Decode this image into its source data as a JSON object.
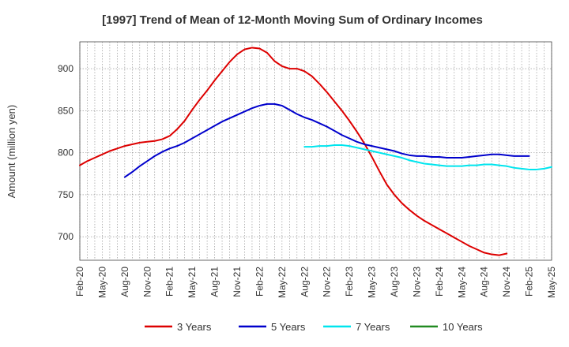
{
  "chart_data": {
    "type": "line",
    "title": "[1997]  Trend of Mean of 12-Month Moving Sum of Ordinary Incomes",
    "xlabel": "",
    "ylabel": "Amount (million yen)",
    "ylim": [
      672,
      932
    ],
    "yticks": [
      700,
      750,
      800,
      850,
      900
    ],
    "x_tick_labels": [
      "Feb-20",
      "May-20",
      "Aug-20",
      "Nov-20",
      "Feb-21",
      "May-21",
      "Aug-21",
      "Nov-21",
      "Feb-22",
      "May-22",
      "Aug-22",
      "Nov-22",
      "Feb-23",
      "May-23",
      "Aug-23",
      "Nov-23",
      "Feb-24",
      "May-24",
      "Aug-24",
      "Nov-24",
      "Feb-25",
      "May-25"
    ],
    "x_month_range": [
      0,
      63
    ],
    "grid": true,
    "legend_position": "bottom",
    "series": [
      {
        "name": "3 Years",
        "color": "#dd0000",
        "start_month": 0,
        "values": [
          785,
          790,
          794,
          798,
          802,
          805,
          808,
          810,
          812,
          813,
          814,
          816,
          820,
          828,
          838,
          851,
          863,
          874,
          886,
          897,
          908,
          917,
          923,
          925,
          924,
          919,
          909,
          903,
          900,
          900,
          897,
          891,
          882,
          872,
          861,
          850,
          838,
          825,
          811,
          795,
          778,
          762,
          750,
          740,
          732,
          725,
          719,
          714,
          709,
          704,
          699,
          694,
          689,
          685,
          681,
          679,
          678,
          680
        ]
      },
      {
        "name": "5 Years",
        "color": "#0000cc",
        "start_month": 6,
        "values": [
          771,
          777,
          784,
          790,
          796,
          801,
          805,
          808,
          812,
          817,
          822,
          827,
          832,
          837,
          841,
          845,
          849,
          853,
          856,
          858,
          858,
          856,
          851,
          846,
          842,
          839,
          835,
          831,
          826,
          821,
          817,
          813,
          810,
          808,
          806,
          804,
          802,
          799,
          797,
          796,
          796,
          795,
          795,
          794,
          794,
          794,
          795,
          796,
          797,
          798,
          798,
          797,
          796,
          796,
          796
        ]
      },
      {
        "name": "7 Years",
        "color": "#00e5ee",
        "start_month": 30,
        "values": [
          807,
          807,
          808,
          808,
          809,
          809,
          808,
          806,
          804,
          802,
          800,
          798,
          796,
          794,
          791,
          789,
          787,
          786,
          785,
          784,
          784,
          784,
          785,
          785,
          786,
          786,
          785,
          784,
          782,
          781,
          780,
          780,
          781,
          783
        ]
      },
      {
        "name": "10 Years",
        "color": "#228b22",
        "start_month": 0,
        "values": []
      }
    ]
  }
}
